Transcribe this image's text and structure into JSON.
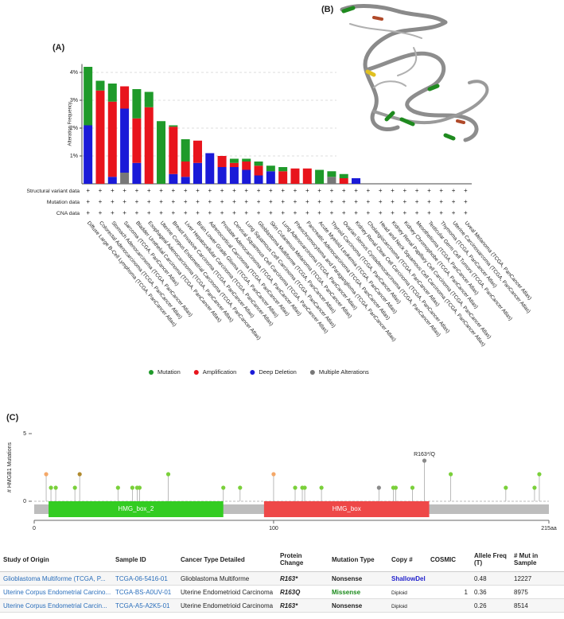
{
  "chart_data": [
    {
      "type": "bar",
      "panel_label": "(A)",
      "y_label": "Alteration Frequency",
      "categories": [
        "Diffuse Large B-Cell Lymphoma (TCGA, PanCancer Atlas)",
        "Colorectal Adenocarcinoma (TCGA, PanCancer Atlas)",
        "Stomach Adenocarcinoma (TCGA, PanCancer Atlas)",
        "Sarcoma (TCGA, PanCancer Atlas)",
        "Bladder Urothelial Carcinoma (TCGA, PanCancer Atlas)",
        "Esophageal Adenocarcinoma (TCGA, PanCancer Atlas)",
        "Uterine Corpus Endometrial Carcinoma (TCGA, PanCancer Atlas)",
        "Breast Invasive Carcinoma (TCGA, PanCancer Atlas)",
        "Liver Hepatocellular Carcinoma (TCGA, PanCancer Atlas)",
        "Brain Lower Grade Glioma (TCGA, PanCancer Atlas)",
        "Adrenocortical Carcinoma (TCGA, PanCancer Atlas)",
        "Prostate Adenocarcinoma (TCGA, PanCancer Atlas)",
        "Cervical Squamous Cell Carcinoma (TCGA, PanCancer Atlas)",
        "Lung Squamous Cell Carcinoma (TCGA, PanCancer Atlas)",
        "Glioblastoma Multiforme (TCGA, PanCancer Atlas)",
        "Skin Cutaneous Melanoma (TCGA, PanCancer Atlas)",
        "Lung Adenocarcinoma (TCGA, PanCancer Atlas)",
        "Pheochromocytoma and Paraganglioma (TCGA, PanCancer Atlas)",
        "Pancreatic Adenocarcinoma (TCGA, PanCancer Atlas)",
        "Acute Myeloid Leukemia (TCGA, PanCancer Atlas)",
        "Thyroid Carcinoma (TCGA, PanCancer Atlas)",
        "Ovarian Serous Cystadenocarcinoma (TCGA, PanCancer Atlas)",
        "Kidney Renal Clear Cell Carcinoma (TCGA, PanCancer Atlas)",
        "Cholangiocarcinoma (TCGA, PanCancer Atlas)",
        "Head and Neck Squamous Cell Carcinoma (TCGA, PanCancer Atlas)",
        "Kidney Renal Papillary Cell Carcinoma (TCGA, PanCancer Atlas)",
        "Kidney Chromophobe (TCGA, PanCancer Atlas)",
        "Mesothelioma (TCGA, PanCancer Atlas)",
        "Testicular Germ Cell Tumors (TCGA, PanCancer Atlas)",
        "Thymoma (TCGA, PanCancer Atlas)",
        "Uterine Carcinosarcoma (TCGA, PanCancer Atlas)",
        "Uveal Melanoma (TCGA, PanCancer Atlas)"
      ],
      "series": [
        {
          "name": "Mutation",
          "color": "#1f9a2a",
          "values": [
            2.1,
            0.35,
            0.65,
            0,
            1.05,
            0.55,
            2.25,
            0.05,
            0.8,
            0,
            0,
            0,
            0.15,
            0.1,
            0.15,
            0.2,
            0.15,
            0,
            0,
            0.5,
            0.2,
            0.15,
            0,
            0,
            0,
            0,
            0,
            0,
            0,
            0,
            0,
            0
          ]
        },
        {
          "name": "Amplification",
          "color": "#e8141c",
          "values": [
            0,
            3.35,
            2.7,
            0.8,
            1.6,
            2.75,
            0,
            1.7,
            0.55,
            0.8,
            0,
            0.4,
            0.15,
            0.3,
            0.35,
            0,
            0.45,
            0.55,
            0.55,
            0,
            0,
            0.2,
            0,
            0,
            0,
            0,
            0,
            0,
            0,
            0,
            0,
            0
          ]
        },
        {
          "name": "Deep Deletion",
          "color": "#1a1ad8",
          "values": [
            2.1,
            0,
            0.25,
            2.3,
            0.75,
            0,
            0,
            0.35,
            0.25,
            0.75,
            1.1,
            0.6,
            0.6,
            0.5,
            0.3,
            0.45,
            0,
            0,
            0,
            0,
            0,
            0,
            0.2,
            0,
            0,
            0,
            0,
            0,
            0,
            0,
            0,
            0
          ]
        },
        {
          "name": "Multiple Alterations",
          "color": "#777777",
          "values": [
            0,
            0,
            0,
            0.4,
            0,
            0,
            0,
            0,
            0,
            0,
            0,
            0,
            0,
            0,
            0,
            0,
            0,
            0,
            0,
            0,
            0.25,
            0,
            0,
            0,
            0,
            0,
            0,
            0,
            0,
            0,
            0,
            0
          ]
        }
      ],
      "ylim": [
        0,
        4.3
      ],
      "yticks": [
        {
          "value": 1,
          "label": "1%"
        },
        {
          "value": 2,
          "label": "2%"
        },
        {
          "value": 3,
          "label": "3%"
        },
        {
          "value": 4,
          "label": "4%"
        }
      ],
      "grid": true,
      "rows": [
        {
          "label": "Structural variant data",
          "marks": [
            "+",
            "+",
            "+",
            "+",
            "+",
            "+",
            "+",
            "+",
            "+",
            "+",
            "+",
            "+",
            "+",
            "+",
            "+",
            "+",
            "+",
            "+",
            "+",
            "+",
            "+",
            "+",
            "+",
            "+",
            "+",
            "+",
            "+",
            "+",
            "+",
            "+",
            "+",
            "+"
          ]
        },
        {
          "label": "Mutation data",
          "marks": [
            "+",
            "+",
            "+",
            "+",
            "+",
            "+",
            "+",
            "+",
            "+",
            "+",
            "+",
            "+",
            "+",
            "+",
            "+",
            "+",
            "+",
            "+",
            "+",
            "+",
            "+",
            "+",
            "+",
            "+",
            "+",
            "+",
            "+",
            "+",
            "+",
            "+",
            "+",
            "+"
          ]
        },
        {
          "label": "CNA data",
          "marks": [
            "+",
            "+",
            "+",
            "+",
            "+",
            "+",
            "+",
            "+",
            "+",
            "+",
            "+",
            "+",
            "+",
            "+",
            "+",
            "+",
            "+",
            "+",
            "+",
            "+",
            "+",
            "+",
            "+",
            "+",
            "+",
            "+",
            "+",
            "+",
            "+",
            "+",
            "+",
            "+"
          ]
        }
      ]
    },
    {
      "type": "lollipop",
      "panel_label": "(C)",
      "y_label": "# HMGB1 Mutations",
      "x": [
        5,
        7,
        9,
        17,
        19,
        35,
        41,
        43,
        44,
        56,
        79,
        86,
        100,
        109,
        112,
        113,
        120,
        144,
        150,
        151,
        158,
        163,
        174,
        197,
        209,
        211
      ],
      "values": [
        2,
        1,
        1,
        1,
        2,
        1,
        1,
        1,
        1,
        2,
        1,
        1,
        2,
        1,
        1,
        1,
        1,
        1,
        1,
        1,
        1,
        3,
        2,
        1,
        1,
        2
      ],
      "colors": [
        "#f4a868",
        "#7ad03a",
        "#7ad03a",
        "#7ad03a",
        "#b08a2e",
        "#7ad03a",
        "#7ad03a",
        "#7ad03a",
        "#7ad03a",
        "#7ad03a",
        "#7ad03a",
        "#7ad03a",
        "#f4a868",
        "#7ad03a",
        "#7ad03a",
        "#7ad03a",
        "#7ad03a",
        "#8a8a8a",
        "#7ad03a",
        "#7ad03a",
        "#7ad03a",
        "#8a8a8a",
        "#7ad03a",
        "#7ad03a",
        "#7ad03a",
        "#7ad03a"
      ],
      "xlim": [
        0,
        215
      ],
      "xticks": [
        0,
        100,
        {
          "value": 215,
          "label": "215aa"
        }
      ],
      "ylim": [
        0,
        5
      ],
      "yticks": [
        0,
        5
      ],
      "domains": [
        {
          "name": "HMG_box_2",
          "start": 6,
          "end": 79,
          "color": "#33cc22"
        },
        {
          "name": "HMG_box",
          "start": 96,
          "end": 165,
          "color": "#ee4848"
        }
      ],
      "annotations": [
        {
          "text": "R163*/Q",
          "x": 163,
          "y": 3
        }
      ]
    }
  ],
  "panel_b": {
    "label": "(B)"
  },
  "table": {
    "columns": [
      "Study of Origin",
      "Sample ID",
      "Cancer Type Detailed",
      "Protein Change",
      "Mutation Type",
      "Copy #",
      "COSMIC",
      "Allele Freq (T)",
      "# Mut in Sample"
    ],
    "rows": [
      [
        "Glioblastoma Multiforme (TCGA, P...",
        "TCGA-06-5416-01",
        "Glioblastoma Multiforme",
        "R163*",
        "Nonsense",
        "ShallowDel",
        null,
        "0.48",
        "12227"
      ],
      [
        "Uterine Corpus Endometrial Carcino...",
        "TCGA-BS-A0UV-01",
        "Uterine Endometrioid Carcinoma",
        "R163Q",
        "Missense",
        "Diploid",
        "1",
        "0.36",
        "8975"
      ],
      [
        "Uterine Corpus Endometrial Carcin...",
        "TCGA-A5-A2K5-01",
        "Uterine Endometrioid Carcinoma",
        "R163*",
        "Nonsense",
        "Diploid",
        null,
        "0.26",
        "8514"
      ]
    ]
  }
}
